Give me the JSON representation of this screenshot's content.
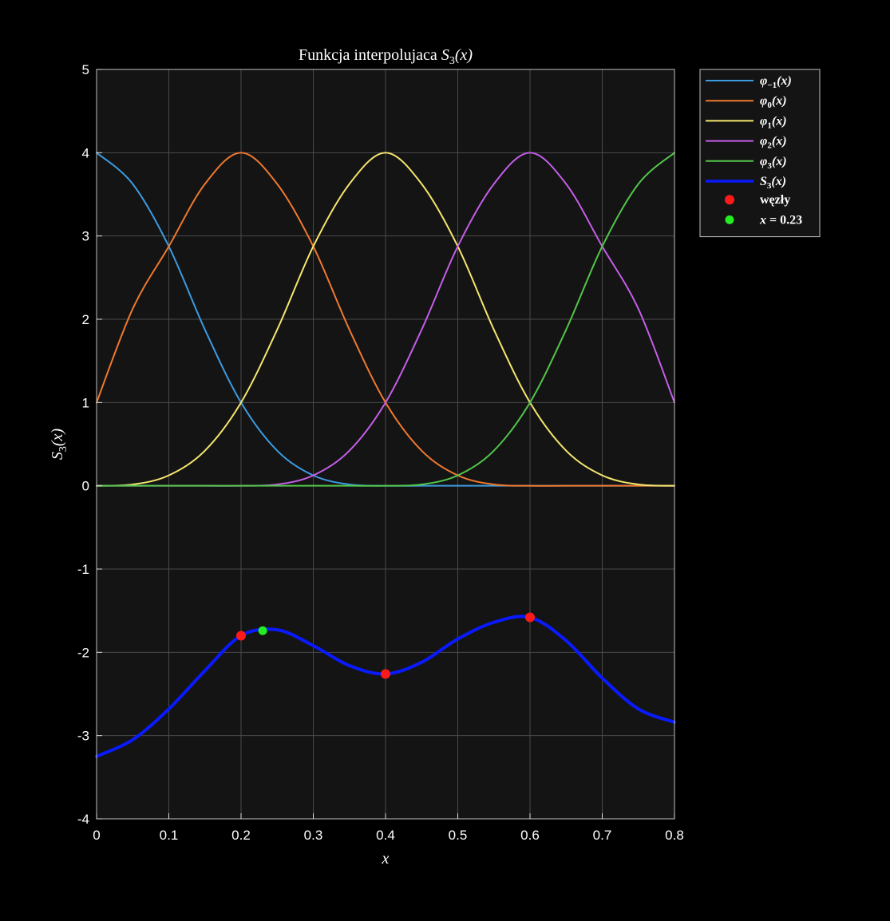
{
  "chart_data": {
    "type": "line",
    "title": {
      "main": "Funkcja interpolujaca ",
      "math": "S",
      "sub": "3",
      "arg": "(x)"
    },
    "xlabel": "x",
    "ylabel": {
      "math": "S",
      "sub": "3",
      "arg": "(x)"
    },
    "xlim": [
      0,
      0.8
    ],
    "ylim": [
      -4,
      5
    ],
    "grid": true,
    "legend_position": "outside-top-right",
    "x_ticks": [
      "0",
      "0.1",
      "0.2",
      "0.3",
      "0.4",
      "0.5",
      "0.6",
      "0.7",
      "0.8"
    ],
    "y_ticks": [
      "-4",
      "-3",
      "-2",
      "-1",
      "0",
      "1",
      "2",
      "3",
      "4",
      "5"
    ],
    "x_tick_values": [
      0,
      0.1,
      0.2,
      0.3,
      0.4,
      0.5,
      0.6,
      0.7,
      0.8
    ],
    "y_tick_values": [
      -4,
      -3,
      -2,
      -1,
      0,
      1,
      2,
      3,
      4,
      5
    ],
    "x": [
      0,
      0.05,
      0.1,
      0.15,
      0.2,
      0.25,
      0.3,
      0.35,
      0.4,
      0.45,
      0.5,
      0.55,
      0.6,
      0.65,
      0.7,
      0.75,
      0.8
    ],
    "series": [
      {
        "name": "φ₋₁(x)",
        "label_main": "φ",
        "label_sub": "−1",
        "color": "#3d9be0",
        "width": 2,
        "values": [
          4.0,
          3.625,
          2.875,
          1.875,
          1.0,
          0.4219,
          0.125,
          0.0156,
          0,
          0,
          0,
          0,
          0,
          0,
          0,
          0,
          0
        ]
      },
      {
        "name": "φ₀(x)",
        "label_main": "φ",
        "label_sub": "0",
        "color": "#f0792f",
        "width": 2,
        "values": [
          1.0,
          2.125,
          2.875,
          3.625,
          4.0,
          3.625,
          2.875,
          1.875,
          1.0,
          0.4219,
          0.125,
          0.0156,
          0,
          0,
          0,
          0,
          0
        ]
      },
      {
        "name": "φ₁(x)",
        "label_main": "φ",
        "label_sub": "1",
        "color": "#f5e66d",
        "width": 2,
        "values": [
          0,
          0.0156,
          0.125,
          0.4219,
          1.0,
          1.875,
          2.875,
          3.625,
          4.0,
          3.625,
          2.875,
          1.875,
          1.0,
          0.4219,
          0.125,
          0.0156,
          0
        ]
      },
      {
        "name": "φ₂(x)",
        "label_main": "φ",
        "label_sub": "2",
        "color": "#c45ee8",
        "width": 2,
        "values": [
          0,
          0,
          0,
          0,
          0,
          0.0156,
          0.125,
          0.4219,
          1.0,
          1.875,
          2.875,
          3.625,
          4.0,
          3.625,
          2.875,
          2.125,
          1.0
        ]
      },
      {
        "name": "φ₃(x)",
        "label_main": "φ",
        "label_sub": "3",
        "color": "#52c74a",
        "width": 2,
        "values": [
          0,
          0,
          0,
          0,
          0,
          0,
          0,
          0,
          0,
          0.0156,
          0.125,
          0.4219,
          1.0,
          1.875,
          2.875,
          3.625,
          4.0
        ]
      },
      {
        "name": "S₃(x)",
        "label_main": "S",
        "label_sub": "3",
        "color": "#0a1aff",
        "width": 4,
        "values": [
          -3.25,
          -3.05,
          -2.68,
          -2.22,
          -1.8,
          -1.73,
          -1.92,
          -2.16,
          -2.26,
          -2.12,
          -1.84,
          -1.64,
          -1.58,
          -1.86,
          -2.31,
          -2.68,
          -2.84
        ]
      }
    ],
    "nodes": {
      "name": "węzły",
      "color": "#ff1a1a",
      "x": [
        0.2,
        0.4,
        0.6
      ],
      "y": [
        -1.8,
        -2.26,
        -1.58
      ]
    },
    "point": {
      "name": "x = 0.23",
      "label_main": "x",
      "label_rest": " = 0.23",
      "color": "#22ee22",
      "x": [
        0.23
      ],
      "y": [
        -1.74
      ]
    },
    "colors": {
      "background": "#000000",
      "axes_bg": "#141414",
      "grid": "#4a4a4a",
      "text": "#ffffff"
    }
  }
}
